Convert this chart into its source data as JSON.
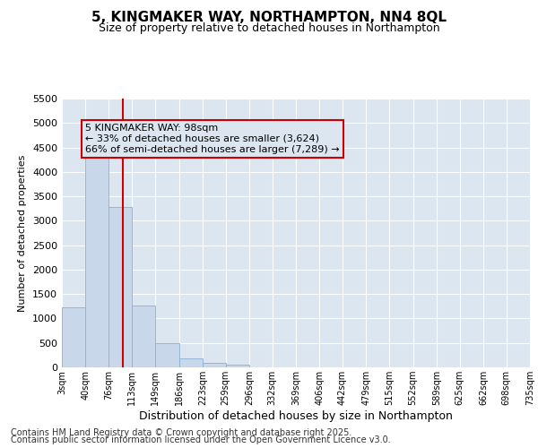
{
  "title": "5, KINGMAKER WAY, NORTHAMPTON, NN4 8QL",
  "subtitle": "Size of property relative to detached houses in Northampton",
  "xlabel": "Distribution of detached houses by size in Northampton",
  "ylabel": "Number of detached properties",
  "bar_color": "#c8d8ea",
  "bar_edge_color": "#8bafd4",
  "plot_bg_color": "#dce6f0",
  "fig_bg_color": "#ffffff",
  "grid_color": "#ffffff",
  "annotation_box_color": "#cc0000",
  "red_line_color": "#cc0000",
  "annotation_line1": "5 KINGMAKER WAY: 98sqm",
  "annotation_line2": "← 33% of detached houses are smaller (3,624)",
  "annotation_line3": "66% of semi-detached houses are larger (7,289) →",
  "footer_line1": "Contains HM Land Registry data © Crown copyright and database right 2025.",
  "footer_line2": "Contains public sector information licensed under the Open Government Licence v3.0.",
  "bins": [
    3,
    40,
    76,
    113,
    149,
    186,
    223,
    259,
    296,
    332,
    369,
    406,
    442,
    479,
    515,
    552,
    589,
    625,
    662,
    698,
    735
  ],
  "bin_labels": [
    "3sqm",
    "40sqm",
    "76sqm",
    "113sqm",
    "149sqm",
    "186sqm",
    "223sqm",
    "259sqm",
    "296sqm",
    "332sqm",
    "369sqm",
    "406sqm",
    "442sqm",
    "479sqm",
    "515sqm",
    "552sqm",
    "589sqm",
    "625sqm",
    "662sqm",
    "698sqm",
    "735sqm"
  ],
  "bar_heights": [
    1230,
    4340,
    3280,
    1260,
    500,
    190,
    90,
    50,
    0,
    0,
    0,
    0,
    0,
    0,
    0,
    0,
    0,
    0,
    0,
    0
  ],
  "ylim": [
    0,
    5500
  ],
  "yticks": [
    0,
    500,
    1000,
    1500,
    2000,
    2500,
    3000,
    3500,
    4000,
    4500,
    5000,
    5500
  ],
  "property_size": 98,
  "title_fontsize": 11,
  "subtitle_fontsize": 9,
  "ylabel_fontsize": 8,
  "xlabel_fontsize": 9,
  "tick_fontsize": 8,
  "xtick_fontsize": 7,
  "annotation_fontsize": 8,
  "footer_fontsize": 7
}
